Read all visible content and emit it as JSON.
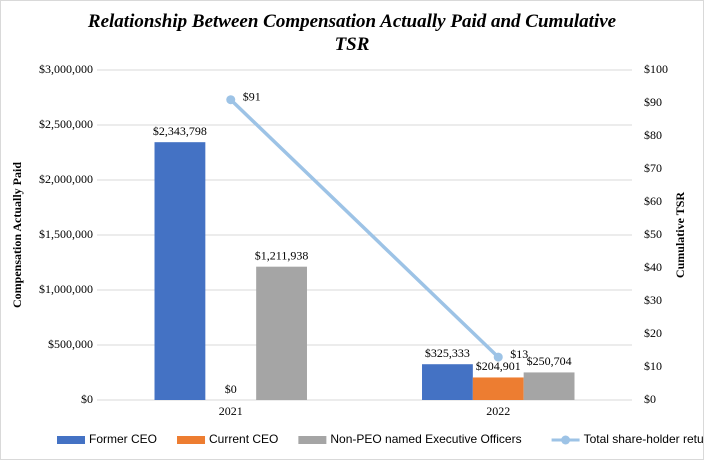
{
  "chart_data": {
    "type": "bar",
    "title": "Relationship Between Compensation Actually Paid and Cumulative TSR",
    "y_label": "Compensation Actually Paid",
    "y2_label": "Cumulative TSR",
    "categories": [
      "2021",
      "2022"
    ],
    "series": [
      {
        "name": "Former CEO",
        "color": "#4472c4",
        "type": "bar",
        "values": [
          2343798,
          325333
        ],
        "value_labels": [
          "$2,343,798",
          "$325,333"
        ]
      },
      {
        "name": "Current CEO",
        "color": "#ed7d31",
        "type": "bar",
        "values": [
          0,
          204901
        ],
        "value_labels": [
          "$0",
          "$204,901"
        ]
      },
      {
        "name": "Non-PEO named Executive Officers",
        "color": "#a5a5a5",
        "type": "bar",
        "values": [
          1211938,
          250704
        ],
        "value_labels": [
          "$1,211,938",
          "$250,704"
        ]
      },
      {
        "name": "Total share-holder return",
        "color": "#9dc3e6",
        "type": "line",
        "axis": "y2",
        "values": [
          91,
          13
        ],
        "value_labels": [
          "$91",
          "$13"
        ]
      }
    ],
    "ylim": [
      0,
      3000000
    ],
    "yticks": [
      {
        "value": 0,
        "label": "$0"
      },
      {
        "value": 500000,
        "label": "$500,000"
      },
      {
        "value": 1000000,
        "label": "$1,000,000"
      },
      {
        "value": 1500000,
        "label": "$1,500,000"
      },
      {
        "value": 2000000,
        "label": "$2,000,000"
      },
      {
        "value": 2500000,
        "label": "$2,500,000"
      },
      {
        "value": 3000000,
        "label": "$3,000,000"
      }
    ],
    "y2lim": [
      0,
      100
    ],
    "y2ticks": [
      {
        "value": 0,
        "label": "$0"
      },
      {
        "value": 10,
        "label": "$10"
      },
      {
        "value": 20,
        "label": "$20"
      },
      {
        "value": 30,
        "label": "$30"
      },
      {
        "value": 40,
        "label": "$40"
      },
      {
        "value": 50,
        "label": "$50"
      },
      {
        "value": 60,
        "label": "$60"
      },
      {
        "value": 70,
        "label": "$70"
      },
      {
        "value": 80,
        "label": "$80"
      },
      {
        "value": 90,
        "label": "$90"
      },
      {
        "value": 100,
        "label": "$100"
      }
    ],
    "grid": true,
    "legend": "bottom"
  }
}
